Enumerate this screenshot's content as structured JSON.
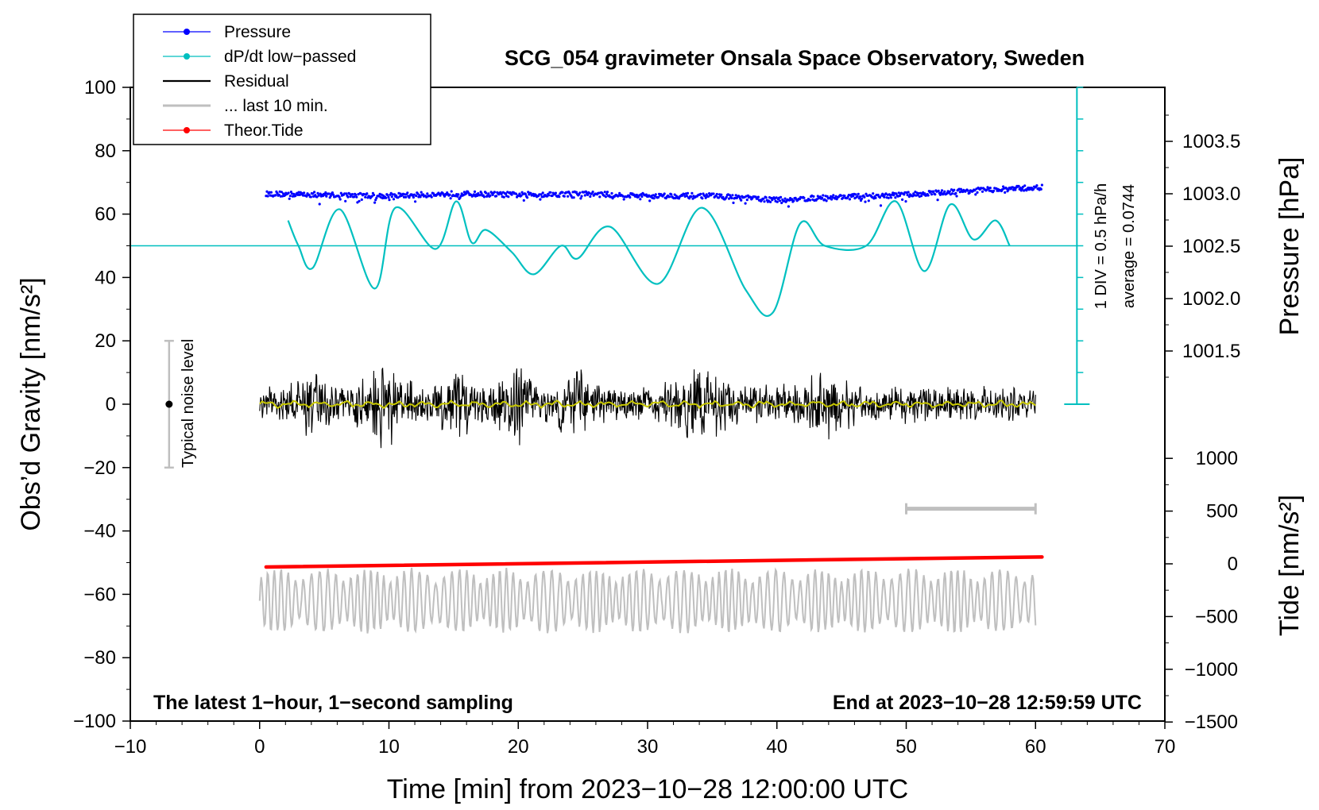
{
  "chart_data": {
    "type": "line",
    "title": "SCG_054 gravimeter Onsala Space Observatory, Sweden",
    "xlabel": "Time [min] from 2023−10−28 12:00:00 UTC",
    "ylabel_left": "Obs’d Gravity [nm/s²]",
    "ylabel_right_top": "Pressure [hPa]",
    "ylabel_right_bottom": "Tide [nm/s²]",
    "xlim": [
      -10,
      70
    ],
    "ylim": [
      -100,
      100
    ],
    "x_ticks": [
      "−10",
      "0",
      "10",
      "20",
      "30",
      "40",
      "50",
      "60",
      "70"
    ],
    "y_ticks": [
      "100",
      "80",
      "60",
      "40",
      "20",
      "0",
      "−20",
      "−40",
      "−60",
      "−80",
      "−100"
    ],
    "pressure_ticks": [
      "1003.5",
      "1003.0",
      "1002.5",
      "1002.0",
      "1001.5"
    ],
    "tide_ticks": [
      "1000",
      "500",
      "0",
      "−500",
      "−1000",
      "−1500"
    ],
    "legend": [
      {
        "label": "Pressure",
        "color": "#0000ff"
      },
      {
        "label": "dP/dt low−passed",
        "color": "#00bfbf"
      },
      {
        "label": "Residual",
        "color": "#000000"
      },
      {
        "label": "... last 10 min.",
        "color": "#bfbfbf"
      },
      {
        "label": "Theor.Tide",
        "color": "#ff0000"
      }
    ],
    "pressure_scale_label": "1 DIV = 0.5 hPa/h",
    "pressure_average_label": "average = 0.0744",
    "noise_label": "Typical noise level",
    "noise_bar": {
      "x": -7,
      "ymin": -20,
      "ymax": 20
    },
    "last10_bar": {
      "x_start": 50,
      "x_end": 60,
      "y": -33
    },
    "footer_left": "The latest 1−hour, 1−second sampling",
    "footer_right": "End at 2023−10−28 12:59:59 UTC",
    "series": [
      {
        "name": "Pressure",
        "color": "#0000ff",
        "unit": "hPa",
        "x": [
          0.5,
          5,
          10,
          15,
          20,
          25,
          30,
          35,
          40,
          45,
          50,
          55,
          60.5
        ],
        "values": [
          1003.0,
          1002.99,
          1002.98,
          1003.0,
          1002.99,
          1003.0,
          1002.98,
          1002.98,
          1002.94,
          1002.97,
          1002.99,
          1003.03,
          1003.06
        ]
      },
      {
        "name": "dP/dt low−passed",
        "color": "#00bfbf",
        "unit": "nm/s² equiv.",
        "x": [
          2.2,
          3,
          4.1,
          6.2,
          8.9,
          10.5,
          13.6,
          15.2,
          16.4,
          17.5,
          19.5,
          21.2,
          23.3,
          24.6,
          27.1,
          30.8,
          34.2,
          37.6,
          39.7,
          41.8,
          43.7,
          46.9,
          49.2,
          51.4,
          53.4,
          55.2,
          56.9,
          58.0
        ],
        "values": [
          58,
          50,
          43,
          61.5,
          36.5,
          62,
          49,
          64,
          51,
          55,
          48,
          41,
          50,
          46,
          56,
          38,
          62,
          36,
          29,
          57,
          50,
          50,
          64,
          42,
          63,
          52,
          58,
          50
        ]
      },
      {
        "name": "Residual",
        "color": "#000000",
        "x_range": [
          0,
          60
        ],
        "amplitude_nm_s2": 10,
        "min": -18,
        "max": 19
      },
      {
        "name": "Residual smoothed",
        "color": "#c8c800",
        "x_range": [
          0,
          60
        ],
        "amplitude_nm_s2": 1
      },
      {
        "name": "... last 10 min.",
        "color": "#bfbfbf",
        "x_range": [
          0,
          60
        ],
        "center_nm_s2": -62,
        "amplitude_nm_s2": 10
      },
      {
        "name": "Theor.Tide",
        "color": "#ff0000",
        "unit": "nm/s²",
        "x": [
          0.5,
          60.5
        ],
        "values": [
          -30,
          65
        ]
      }
    ]
  }
}
